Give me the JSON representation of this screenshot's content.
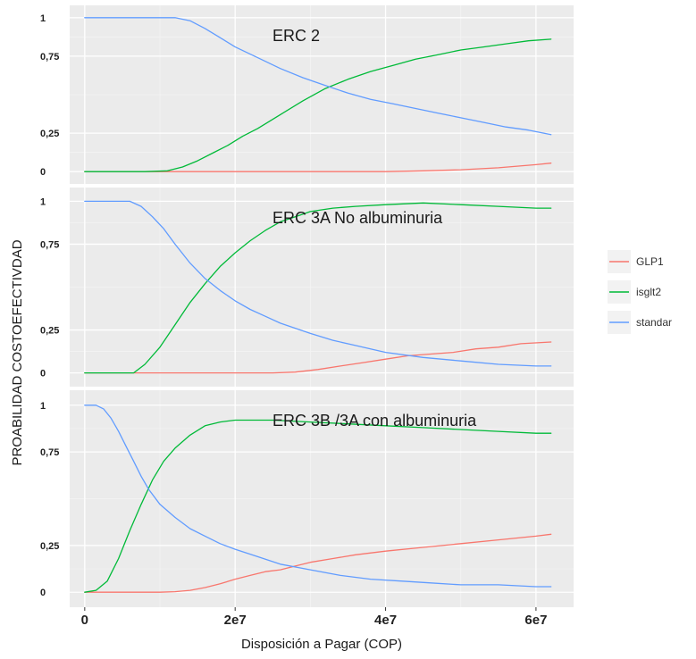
{
  "chart_data": {
    "type": "line",
    "xlabel": "Disposición a Pagar (COP)",
    "ylabel": "PROABILIDAD COSTOEFECTIVDAD",
    "xlim": [
      -2000000,
      65000000
    ],
    "ylim": [
      -0.08,
      1.08
    ],
    "x_ticks": [
      0,
      20000000,
      40000000,
      60000000
    ],
    "x_tick_labels": [
      "0",
      "2e7",
      "4e7",
      "6e7"
    ],
    "y_ticks": [
      0,
      0.25,
      0.75,
      1
    ],
    "y_tick_labels": [
      "0",
      "0,25",
      "0,75",
      "1"
    ],
    "grid": true,
    "legend": {
      "position": "right",
      "entries": [
        {
          "name": "GLP1",
          "color": "#f8766d"
        },
        {
          "name": "isglt2",
          "color": "#00ba38"
        },
        {
          "name": "standar",
          "color": "#619cff"
        }
      ]
    },
    "panels": [
      {
        "title": "ERC 2",
        "series": [
          {
            "name": "GLP1",
            "color": "#f8766d",
            "x": [
              0,
              10000000,
              20000000,
              30000000,
              40000000,
              45000000,
              50000000,
              55000000,
              60000000,
              62000000
            ],
            "y": [
              0,
              0,
              0,
              0,
              0,
              0.005,
              0.012,
              0.025,
              0.045,
              0.055
            ]
          },
          {
            "name": "isglt2",
            "color": "#00ba38",
            "x": [
              0,
              8000000,
              11000000,
              13000000,
              15000000,
              17000000,
              19000000,
              21000000,
              23000000,
              26000000,
              29000000,
              32000000,
              35000000,
              38000000,
              41000000,
              44000000,
              47000000,
              50000000,
              53000000,
              56000000,
              59000000,
              62000000
            ],
            "y": [
              0,
              0,
              0.005,
              0.03,
              0.07,
              0.12,
              0.17,
              0.23,
              0.28,
              0.37,
              0.46,
              0.54,
              0.6,
              0.65,
              0.69,
              0.73,
              0.76,
              0.79,
              0.81,
              0.83,
              0.85,
              0.86
            ]
          },
          {
            "name": "standar",
            "color": "#619cff",
            "x": [
              0,
              12000000,
              14000000,
              16000000,
              18000000,
              20000000,
              23000000,
              26000000,
              29000000,
              32000000,
              35000000,
              38000000,
              41000000,
              44000000,
              47000000,
              50000000,
              53000000,
              56000000,
              59000000,
              62000000
            ],
            "y": [
              1,
              1,
              0.98,
              0.93,
              0.87,
              0.81,
              0.74,
              0.67,
              0.61,
              0.56,
              0.51,
              0.47,
              0.44,
              0.41,
              0.38,
              0.35,
              0.32,
              0.29,
              0.27,
              0.24
            ]
          }
        ]
      },
      {
        "title": "ERC 3A No albuminuria",
        "series": [
          {
            "name": "GLP1",
            "color": "#f8766d",
            "x": [
              0,
              20000000,
              25000000,
              28000000,
              31000000,
              34000000,
              37000000,
              40000000,
              43000000,
              46000000,
              49000000,
              52000000,
              55000000,
              58000000,
              62000000
            ],
            "y": [
              0,
              0,
              0,
              0.005,
              0.02,
              0.04,
              0.06,
              0.08,
              0.1,
              0.11,
              0.12,
              0.14,
              0.15,
              0.17,
              0.18
            ]
          },
          {
            "name": "isglt2",
            "color": "#00ba38",
            "x": [
              0,
              6500000,
              8000000,
              10000000,
              12000000,
              14000000,
              16000000,
              18000000,
              20000000,
              22000000,
              24000000,
              26000000,
              28000000,
              30000000,
              33000000,
              36000000,
              40000000,
              45000000,
              50000000,
              55000000,
              60000000,
              62000000
            ],
            "y": [
              0,
              0,
              0.05,
              0.15,
              0.28,
              0.41,
              0.52,
              0.62,
              0.7,
              0.77,
              0.83,
              0.88,
              0.91,
              0.94,
              0.96,
              0.97,
              0.98,
              0.99,
              0.98,
              0.97,
              0.96,
              0.96
            ]
          },
          {
            "name": "standar",
            "color": "#619cff",
            "x": [
              0,
              6000000,
              7500000,
              9000000,
              10500000,
              12000000,
              14000000,
              16000000,
              18000000,
              20000000,
              22000000,
              24000000,
              26000000,
              28000000,
              30000000,
              33000000,
              36000000,
              40000000,
              45000000,
              50000000,
              55000000,
              60000000,
              62000000
            ],
            "y": [
              1,
              1,
              0.97,
              0.91,
              0.84,
              0.75,
              0.64,
              0.55,
              0.48,
              0.42,
              0.37,
              0.33,
              0.29,
              0.26,
              0.23,
              0.19,
              0.16,
              0.12,
              0.09,
              0.07,
              0.05,
              0.04,
              0.04
            ]
          }
        ]
      },
      {
        "title": "ERC 3B /3A con albuminuria",
        "series": [
          {
            "name": "GLP1",
            "color": "#f8766d",
            "x": [
              0,
              10000000,
              12000000,
              14000000,
              16000000,
              18000000,
              20000000,
              22000000,
              24000000,
              26000000,
              28000000,
              30000000,
              33000000,
              36000000,
              40000000,
              45000000,
              50000000,
              55000000,
              60000000,
              62000000
            ],
            "y": [
              0,
              0,
              0.003,
              0.01,
              0.025,
              0.045,
              0.07,
              0.09,
              0.11,
              0.12,
              0.14,
              0.16,
              0.18,
              0.2,
              0.22,
              0.24,
              0.26,
              0.28,
              0.3,
              0.31
            ]
          },
          {
            "name": "isglt2",
            "color": "#00ba38",
            "x": [
              0,
              1500000,
              3000000,
              4500000,
              6000000,
              7500000,
              9000000,
              10500000,
              12000000,
              14000000,
              16000000,
              18000000,
              20000000,
              25000000,
              30000000,
              35000000,
              40000000,
              45000000,
              50000000,
              55000000,
              60000000,
              62000000
            ],
            "y": [
              0,
              0.01,
              0.06,
              0.18,
              0.33,
              0.47,
              0.6,
              0.7,
              0.77,
              0.84,
              0.89,
              0.91,
              0.92,
              0.92,
              0.91,
              0.9,
              0.89,
              0.88,
              0.87,
              0.86,
              0.85,
              0.85
            ]
          },
          {
            "name": "standar",
            "color": "#619cff",
            "x": [
              0,
              1500000,
              2500000,
              3500000,
              4500000,
              5500000,
              6500000,
              7500000,
              8500000,
              10000000,
              12000000,
              14000000,
              16000000,
              18000000,
              20000000,
              23000000,
              26000000,
              30000000,
              34000000,
              38000000,
              42000000,
              46000000,
              50000000,
              55000000,
              60000000,
              62000000
            ],
            "y": [
              1,
              1,
              0.98,
              0.93,
              0.86,
              0.78,
              0.7,
              0.62,
              0.55,
              0.47,
              0.4,
              0.34,
              0.3,
              0.26,
              0.23,
              0.19,
              0.15,
              0.12,
              0.09,
              0.07,
              0.06,
              0.05,
              0.04,
              0.04,
              0.03,
              0.03
            ]
          }
        ]
      }
    ]
  }
}
